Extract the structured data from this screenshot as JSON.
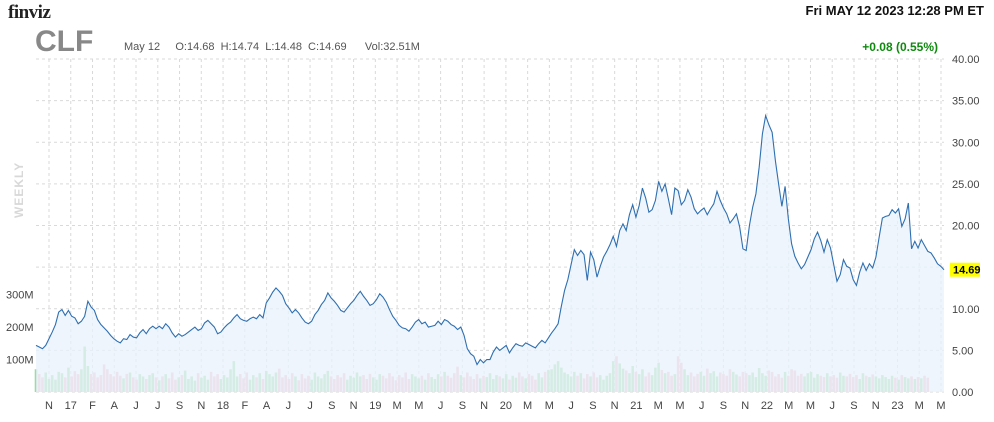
{
  "header": {
    "logo": "finviz",
    "datetime": "Fri MAY 12 2023 12:28 PM ET",
    "ticker": "CLF",
    "ohlc": "May 12     O:14.68  H:14.74  L:14.48  C:14.69      Vol:32.51M",
    "change": "+0.08 (0.55%)",
    "period_label": "WEEKLY"
  },
  "colors": {
    "line": "#2f6fb0",
    "area": "#e8f2fc",
    "vol_up": "#9ddc9d",
    "vol_down": "#f4b6c2",
    "grid": "#d9d9d9",
    "price_badge": "#ffff00"
  },
  "chart_data": {
    "type": "line",
    "ylim": [
      0,
      40
    ],
    "y_ticks": [
      "0.00",
      "5.00",
      "10.00",
      "15.00",
      "20.00",
      "25.00",
      "30.00",
      "35.00",
      "40.00"
    ],
    "x_ticks": [
      "N",
      "17",
      "F",
      "A",
      "J",
      "J",
      "S",
      "N",
      "18",
      "F",
      "A",
      "J",
      "J",
      "S",
      "N",
      "19",
      "M",
      "M",
      "J",
      "S",
      "N",
      "20",
      "M",
      "M",
      "J",
      "S",
      "N",
      "21",
      "M",
      "M",
      "J",
      "S",
      "N",
      "22",
      "M",
      "M",
      "J",
      "S",
      "N",
      "23",
      "M",
      "M"
    ],
    "current_price": "14.69",
    "volume_labels": [
      "300M",
      "200M",
      "100M"
    ],
    "volume_ylim": [
      0,
      400
    ],
    "series": [
      {
        "values": [
          5.6,
          5.4,
          5.2,
          5.6,
          6.4,
          7.2,
          8.1,
          9.6,
          9.9,
          9.2,
          9.8,
          9.1,
          8.9,
          8.2,
          8.5,
          9.1,
          10.9,
          10.2,
          9.8,
          8.7,
          8.1,
          7.7,
          7.3,
          6.8,
          6.4,
          6.1,
          5.9,
          6.4,
          6.3,
          6.9,
          6.6,
          6.5,
          7.1,
          7.5,
          7.0,
          7.6,
          7.9,
          7.6,
          7.9,
          7.6,
          8.2,
          7.8,
          7.1,
          6.6,
          7.0,
          6.7,
          6.9,
          7.2,
          7.5,
          7.8,
          7.4,
          7.6,
          8.3,
          8.6,
          8.2,
          7.8,
          7.0,
          7.2,
          7.7,
          8.1,
          8.4,
          8.9,
          9.3,
          8.8,
          8.6,
          8.5,
          8.8,
          9.0,
          8.8,
          9.3,
          8.9,
          10.7,
          11.3,
          12.0,
          12.5,
          12.1,
          11.6,
          10.6,
          10.1,
          9.5,
          9.9,
          9.5,
          8.9,
          8.4,
          8.2,
          8.5,
          9.3,
          9.8,
          10.5,
          11.0,
          11.9,
          11.3,
          10.9,
          10.4,
          9.8,
          9.6,
          10.1,
          10.6,
          11.0,
          11.6,
          12.1,
          11.5,
          11.0,
          10.4,
          10.6,
          11.1,
          11.8,
          11.4,
          10.8,
          9.9,
          9.1,
          8.6,
          8.0,
          7.7,
          7.6,
          7.3,
          7.8,
          8.4,
          8.7,
          8.2,
          8.4,
          7.8,
          7.9,
          8.0,
          8.5,
          8.1,
          8.7,
          8.5,
          8.1,
          7.9,
          7.5,
          7.8,
          6.8,
          5.2,
          4.6,
          4.3,
          3.3,
          3.9,
          3.5,
          3.9,
          3.9,
          4.8,
          5.4,
          5.0,
          5.3,
          5.6,
          4.7,
          5.3,
          5.8,
          5.6,
          5.5,
          5.9,
          5.7,
          5.5,
          5.3,
          5.8,
          6.2,
          5.9,
          6.5,
          7.1,
          7.6,
          8.2,
          10.3,
          12.2,
          13.5,
          15.3,
          17.1,
          16.4,
          17.0,
          16.5,
          13.4,
          16.8,
          15.9,
          13.8,
          15.1,
          16.2,
          16.9,
          17.7,
          18.7,
          17.5,
          19.4,
          20.2,
          19.4,
          21.3,
          22.5,
          21.0,
          22.4,
          24.5,
          23.3,
          21.6,
          21.9,
          23.0,
          25.3,
          24.1,
          25.0,
          23.2,
          21.3,
          24.5,
          24.2,
          22.5,
          23.0,
          24.3,
          23.4,
          22.0,
          21.4,
          21.8,
          22.1,
          21.3,
          22.0,
          22.6,
          24.1,
          23.0,
          22.1,
          21.4,
          20.3,
          20.8,
          21.4,
          19.8,
          17.2,
          17.0,
          20.0,
          22.2,
          23.8,
          27.0,
          31.0,
          33.2,
          32.1,
          31.2,
          27.8,
          25.0,
          22.3,
          24.7,
          20.8,
          17.8,
          16.3,
          15.5,
          14.8,
          15.3,
          16.2,
          17.1,
          18.4,
          19.2,
          18.2,
          16.8,
          18.3,
          17.3,
          15.3,
          13.3,
          14.1,
          15.9,
          15.1,
          14.9,
          13.5,
          12.8,
          14.4,
          15.5,
          14.6,
          15.4,
          14.9,
          16.2,
          18.6,
          20.9,
          21.1,
          21.2,
          21.9,
          21.5,
          22.0,
          19.9,
          20.8,
          22.7,
          17.2,
          18.1,
          17.3,
          18.3,
          17.6,
          16.9,
          16.7,
          16.1,
          15.4,
          15.1,
          14.69
        ]
      }
    ],
    "volume": [
      70,
      55,
      45,
      60,
      40,
      52,
      38,
      62,
      58,
      45,
      75,
      48,
      64,
      55,
      70,
      140,
      80,
      55,
      60,
      45,
      52,
      85,
      70,
      55,
      48,
      62,
      50,
      42,
      56,
      60,
      45,
      38,
      55,
      48,
      40,
      52,
      58,
      45,
      36,
      48,
      55,
      42,
      60,
      38,
      45,
      52,
      66,
      40,
      48,
      35,
      58,
      44,
      50,
      38,
      62,
      48,
      55,
      40,
      52,
      45,
      70,
      95,
      48,
      55,
      42,
      60,
      38,
      52,
      45,
      58,
      40,
      65,
      55,
      48,
      60,
      72,
      45,
      52,
      40,
      58,
      48,
      36,
      55,
      42,
      50,
      38,
      60,
      48,
      42,
      55,
      65,
      48,
      40,
      52,
      45,
      58,
      38,
      50,
      44,
      60,
      48,
      52,
      40,
      56,
      45,
      38,
      55,
      50,
      42,
      58,
      48,
      36,
      52,
      45,
      60,
      40,
      55,
      48,
      42,
      50,
      38,
      58,
      46,
      40,
      55,
      48,
      62,
      50,
      44,
      58,
      78,
      52,
      45,
      60,
      48,
      40,
      55,
      42,
      50,
      46,
      58,
      40,
      52,
      48,
      42,
      55,
      38,
      50,
      44,
      60,
      48,
      42,
      55,
      50,
      38,
      58,
      45,
      62,
      68,
      70,
      85,
      95,
      75,
      60,
      55,
      48,
      62,
      50,
      58,
      42,
      55,
      48,
      60,
      45,
      52,
      38,
      50,
      58,
      95,
      110,
      88,
      72,
      66,
      58,
      80,
      62,
      55,
      70,
      48,
      60,
      52,
      75,
      90,
      68,
      58,
      62,
      50,
      55,
      110,
      90,
      70,
      52,
      60,
      48,
      56,
      62,
      50,
      72,
      58,
      64,
      48,
      60,
      55,
      50,
      70,
      62,
      54,
      48,
      62,
      58,
      52,
      60,
      46,
      74,
      58,
      50,
      66,
      62,
      48,
      55,
      44,
      62,
      50,
      70,
      66,
      50,
      56,
      48,
      58,
      62,
      44,
      55,
      50,
      46,
      58,
      48,
      52,
      44,
      60,
      50,
      48,
      56,
      46,
      52,
      40,
      58,
      50,
      46,
      54,
      48,
      42,
      52,
      46,
      40,
      50,
      44,
      38,
      52,
      46,
      42,
      48,
      40,
      46,
      42,
      50,
      44
    ]
  }
}
